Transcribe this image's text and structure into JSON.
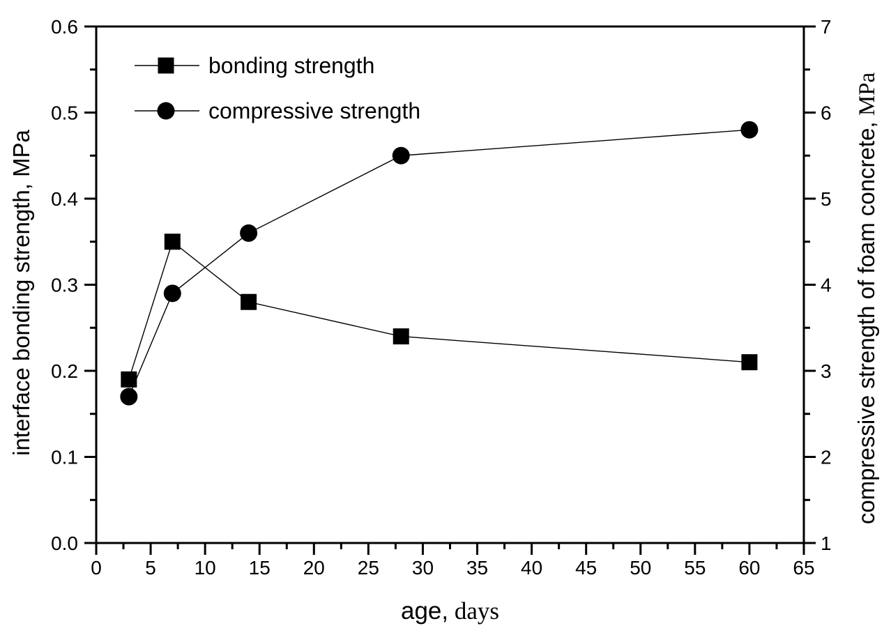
{
  "figure": {
    "background": "#ffffff",
    "ink_color": "#000000"
  },
  "chart_data": {
    "type": "line",
    "title": "",
    "x_axis": {
      "label_sans": "age,",
      "label_serif": " days",
      "min": 0,
      "max": 65,
      "tick_labels": [
        "0",
        "5",
        "10",
        "15",
        "20",
        "25",
        "30",
        "35",
        "40",
        "45",
        "50",
        "55",
        "60",
        "65"
      ],
      "minor_ticks": [
        2.5,
        7.5,
        12.5,
        17.5,
        22.5,
        27.5,
        32.5,
        37.5,
        42.5,
        47.5,
        52.5,
        57.5,
        62.5
      ],
      "grid": "off"
    },
    "y_left": {
      "label": "interface bonding strength, MPa",
      "min": 0.0,
      "max": 0.6,
      "tick_labels": [
        "0.0",
        "0.1",
        "0.2",
        "0.3",
        "0.4",
        "0.5",
        "0.6"
      ],
      "minor_ticks": [
        0.05,
        0.15,
        0.25,
        0.35,
        0.45,
        0.55
      ],
      "grid": "off"
    },
    "y_right": {
      "label_sans": "compressive strength of foam concrete,",
      "label_serif": " MPa",
      "min": 1,
      "max": 7,
      "tick_labels": [
        "1",
        "2",
        "3",
        "4",
        "5",
        "6",
        "7"
      ],
      "minor_ticks": [
        1.5,
        2.5,
        3.5,
        4.5,
        5.5,
        6.5
      ],
      "grid": "off"
    },
    "series": [
      {
        "name": "bonding strength",
        "marker": "square",
        "axis": "left",
        "x": [
          3,
          7,
          14,
          28,
          60
        ],
        "y": [
          0.19,
          0.35,
          0.28,
          0.24,
          0.21
        ]
      },
      {
        "name": "compressive strength",
        "marker": "circle",
        "axis": "right",
        "x": [
          3,
          7,
          14,
          28,
          60
        ],
        "y": [
          2.7,
          3.9,
          4.6,
          5.5,
          5.8
        ]
      }
    ],
    "legend": {
      "position": "top-left-inside",
      "entries": [
        "bonding strength",
        "compressive strength"
      ]
    }
  }
}
